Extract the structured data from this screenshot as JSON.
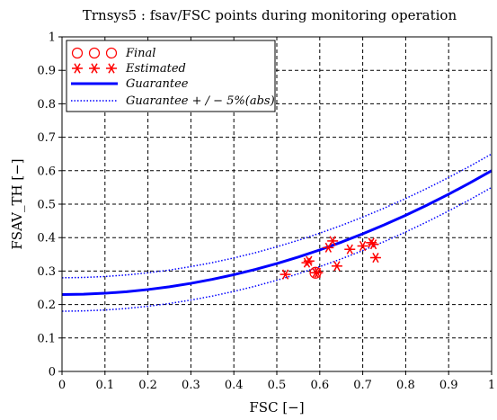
{
  "chart_data": {
    "type": "scatter",
    "title": "Trnsys5  :  fsav/FSC points during monitoring operation",
    "xlabel": "FSC [−]",
    "ylabel": "FSAV_TH [−]",
    "xlim": [
      0,
      1
    ],
    "ylim": [
      0,
      1
    ],
    "xticks": [
      "0",
      "0.1",
      "0.2",
      "0.3",
      "0.4",
      "0.5",
      "0.6",
      "0.7",
      "0.8",
      "0.9",
      "1"
    ],
    "yticks": [
      "0",
      "0.1",
      "0.2",
      "0.3",
      "0.4",
      "0.5",
      "0.6",
      "0.7",
      "0.8",
      "0.9",
      "1"
    ],
    "grid": true,
    "legend_position": "top-left",
    "series": [
      {
        "name": "Final",
        "marker": "circle",
        "color": "#ff0000",
        "points": [
          [
            0.59,
            0.295
          ]
        ]
      },
      {
        "name": "Estimated",
        "marker": "asterisk",
        "color": "#ff0000",
        "points": [
          [
            0.52,
            0.29
          ],
          [
            0.57,
            0.325
          ],
          [
            0.575,
            0.33
          ],
          [
            0.59,
            0.295
          ],
          [
            0.595,
            0.295
          ],
          [
            0.62,
            0.37
          ],
          [
            0.63,
            0.39
          ],
          [
            0.64,
            0.315
          ],
          [
            0.67,
            0.365
          ],
          [
            0.7,
            0.375
          ],
          [
            0.72,
            0.385
          ],
          [
            0.725,
            0.38
          ],
          [
            0.73,
            0.34
          ]
        ]
      },
      {
        "name": "Guarantee",
        "line": "solid",
        "color": "#0000ff",
        "x": [
          0,
          0.05,
          0.1,
          0.15,
          0.2,
          0.25,
          0.3,
          0.35,
          0.4,
          0.45,
          0.5,
          0.55,
          0.6,
          0.65,
          0.7,
          0.75,
          0.8,
          0.85,
          0.9,
          0.95,
          1.0
        ],
        "y": [
          0.23,
          0.2309,
          0.2337,
          0.2383,
          0.2448,
          0.2531,
          0.2633,
          0.2753,
          0.2892,
          0.3049,
          0.3225,
          0.3419,
          0.3632,
          0.3863,
          0.4113,
          0.4381,
          0.4668,
          0.4973,
          0.5297,
          0.5639,
          0.6
        ]
      },
      {
        "name": "Guarantee + / − 5%(abs)",
        "line": "dotted",
        "color": "#0000ff",
        "x": [
          0,
          0.05,
          0.1,
          0.15,
          0.2,
          0.25,
          0.3,
          0.35,
          0.4,
          0.45,
          0.5,
          0.55,
          0.6,
          0.65,
          0.7,
          0.75,
          0.8,
          0.85,
          0.9,
          0.95,
          1.0
        ],
        "upper": [
          0.28,
          0.2809,
          0.2837,
          0.2883,
          0.2948,
          0.3031,
          0.3133,
          0.3253,
          0.3392,
          0.3549,
          0.3725,
          0.3919,
          0.4132,
          0.4363,
          0.4613,
          0.4881,
          0.5168,
          0.5473,
          0.5797,
          0.6139,
          0.65
        ],
        "lower": [
          0.18,
          0.1809,
          0.1837,
          0.1883,
          0.1948,
          0.2031,
          0.2133,
          0.2253,
          0.2392,
          0.2549,
          0.2725,
          0.2919,
          0.3132,
          0.3363,
          0.3613,
          0.3881,
          0.4168,
          0.4473,
          0.4797,
          0.5139,
          0.55
        ]
      }
    ],
    "legend": {
      "entries": [
        {
          "label": "Final",
          "style": "circles"
        },
        {
          "label": "Estimated",
          "style": "asterisks"
        },
        {
          "label": "Guarantee",
          "style": "solid"
        },
        {
          "label": "Guarantee + / − 5%(abs)",
          "style": "dotted"
        }
      ]
    }
  },
  "colors": {
    "marker": "#ff0000",
    "curve": "#0000ff",
    "grid": "#000000",
    "axis": "#000000"
  }
}
